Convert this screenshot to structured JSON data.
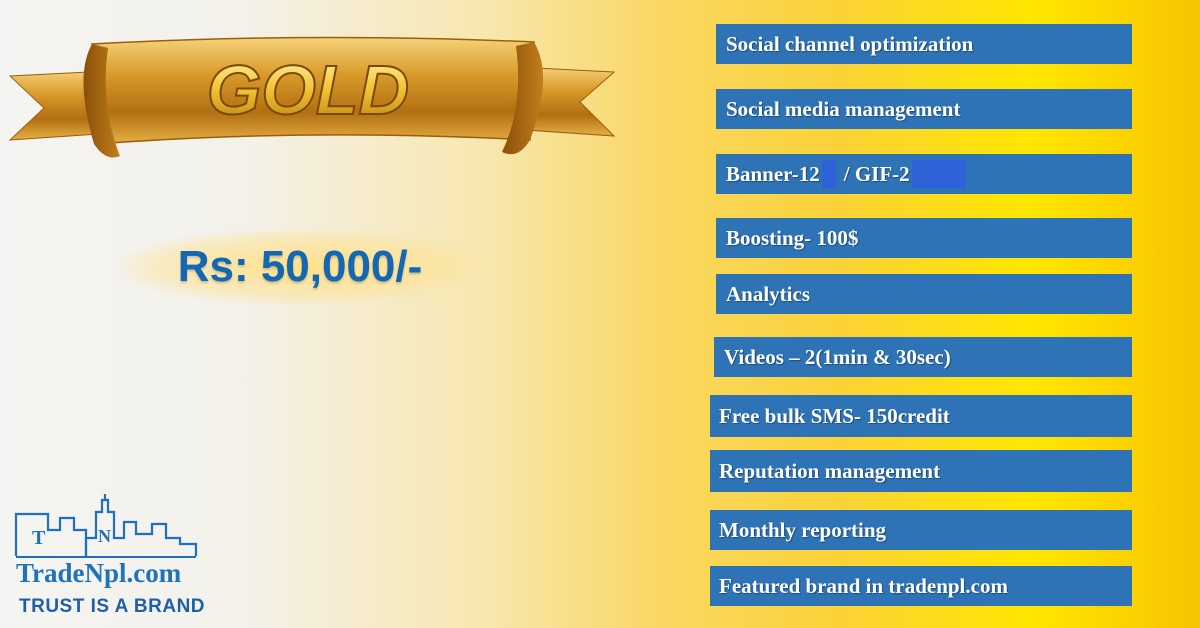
{
  "badge": {
    "text": "GOLD"
  },
  "price": "Rs: 50,000/-",
  "features": [
    "Social channel optimization",
    "Social media management",
    "Banner-12",
    "/ GIF-2",
    "Boosting- 100$",
    "Analytics",
    "Videos – 2(1min & 30sec)",
    "Free bulk SMS- 150credit",
    "Reputation management",
    "Monthly reporting",
    "Featured brand in tradenpl.com"
  ],
  "logo": {
    "letters": [
      "T",
      "N"
    ],
    "name": "TradeNpl.com",
    "tagline": "TRUST IS A BRAND"
  },
  "colors": {
    "feature_bg": "#2e73b5",
    "price_text": "#1467b0",
    "gold": "#d49a1e",
    "blue_patch": "#2f62d8"
  }
}
